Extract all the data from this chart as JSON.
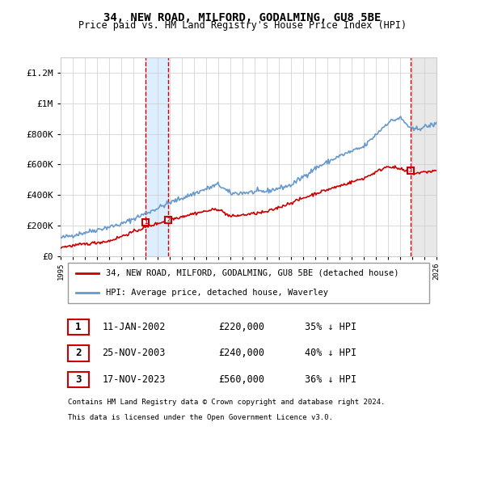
{
  "title": "34, NEW ROAD, MILFORD, GODALMING, GU8 5BE",
  "subtitle": "Price paid vs. HM Land Registry's House Price Index (HPI)",
  "footer1": "Contains HM Land Registry data © Crown copyright and database right 2024.",
  "footer2": "This data is licensed under the Open Government Licence v3.0.",
  "legend_line1": "34, NEW ROAD, MILFORD, GODALMING, GU8 5BE (detached house)",
  "legend_line2": "HPI: Average price, detached house, Waverley",
  "table": [
    {
      "num": "1",
      "date": "11-JAN-2002",
      "price": "£220,000",
      "hpi": "35% ↓ HPI"
    },
    {
      "num": "2",
      "date": "25-NOV-2003",
      "price": "£240,000",
      "hpi": "40% ↓ HPI"
    },
    {
      "num": "3",
      "date": "17-NOV-2023",
      "price": "£560,000",
      "hpi": "36% ↓ HPI"
    }
  ],
  "sale1_date_num": 2002.03,
  "sale2_date_num": 2003.9,
  "sale3_date_num": 2023.88,
  "sale1_price": 220000,
  "sale2_price": 240000,
  "sale3_price": 560000,
  "ylim": [
    0,
    1300000
  ],
  "xlim_start": 1995,
  "xlim_end": 2026,
  "background_color": "#ffffff",
  "grid_color": "#cccccc",
  "red_line_color": "#cc0000",
  "blue_line_color": "#6699cc",
  "sale_marker_color": "#cc0000",
  "shade1_color": "#ddeeff",
  "shade3_color": "#dddddd",
  "dashed_line_color": "#cc0000"
}
